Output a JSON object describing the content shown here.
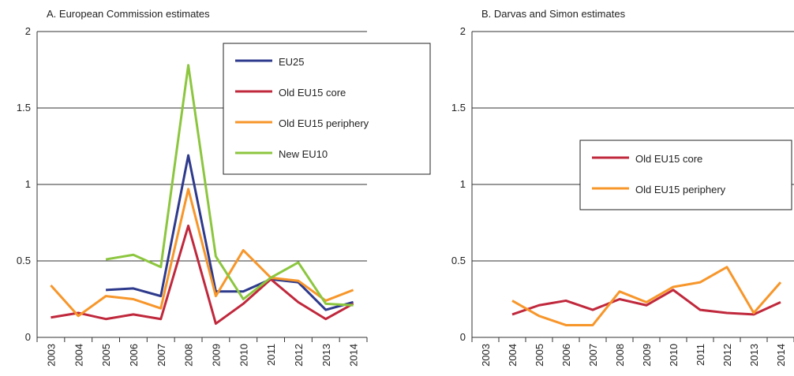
{
  "chart_data": [
    {
      "type": "line",
      "title": "A. European Commission estimates",
      "categories": [
        "2003",
        "2004",
        "2005",
        "2006",
        "2007",
        "2008",
        "2009",
        "2010",
        "2011",
        "2012",
        "2013",
        "2014"
      ],
      "ylim": [
        0,
        2
      ],
      "yticks": [
        0,
        0.5,
        1,
        1.5,
        2
      ],
      "grid": true,
      "legend": "upper right",
      "series": [
        {
          "name": "EU25",
          "color": "#2e3a8c",
          "values": [
            null,
            null,
            0.31,
            0.32,
            0.27,
            1.19,
            0.3,
            0.3,
            0.38,
            0.36,
            0.18,
            0.23
          ]
        },
        {
          "name": "Old EU15 core",
          "color": "#c0283c",
          "values": [
            0.13,
            0.16,
            0.12,
            0.15,
            0.12,
            0.73,
            0.09,
            0.22,
            0.38,
            0.23,
            0.12,
            0.22
          ]
        },
        {
          "name": "Old EU15 periphery",
          "color": "#f7962a",
          "values": [
            0.34,
            0.14,
            0.27,
            0.25,
            0.19,
            0.97,
            0.27,
            0.57,
            0.39,
            0.37,
            0.24,
            0.31
          ]
        },
        {
          "name": "New EU10",
          "color": "#8cc63f",
          "values": [
            null,
            null,
            0.51,
            0.54,
            0.46,
            1.78,
            0.53,
            0.25,
            0.39,
            0.49,
            0.22,
            0.21
          ]
        }
      ]
    },
    {
      "type": "line",
      "title": "B. Darvas and Simon estimates",
      "categories": [
        "2003",
        "2004",
        "2005",
        "2006",
        "2007",
        "2008",
        "2009",
        "2010",
        "2011",
        "2012",
        "2013",
        "2014"
      ],
      "ylim": [
        0,
        2
      ],
      "yticks": [
        0,
        0.5,
        1,
        1.5,
        2
      ],
      "grid": true,
      "legend": "center right",
      "series": [
        {
          "name": "Old EU15 core",
          "color": "#c0283c",
          "values": [
            null,
            0.15,
            0.21,
            0.24,
            0.18,
            0.25,
            0.21,
            0.31,
            0.18,
            0.16,
            0.15,
            0.23
          ]
        },
        {
          "name": "Old EU15 periphery",
          "color": "#f7962a",
          "values": [
            null,
            0.24,
            0.14,
            0.08,
            0.08,
            0.3,
            0.23,
            0.33,
            0.36,
            0.46,
            0.16,
            0.36
          ]
        }
      ]
    }
  ]
}
